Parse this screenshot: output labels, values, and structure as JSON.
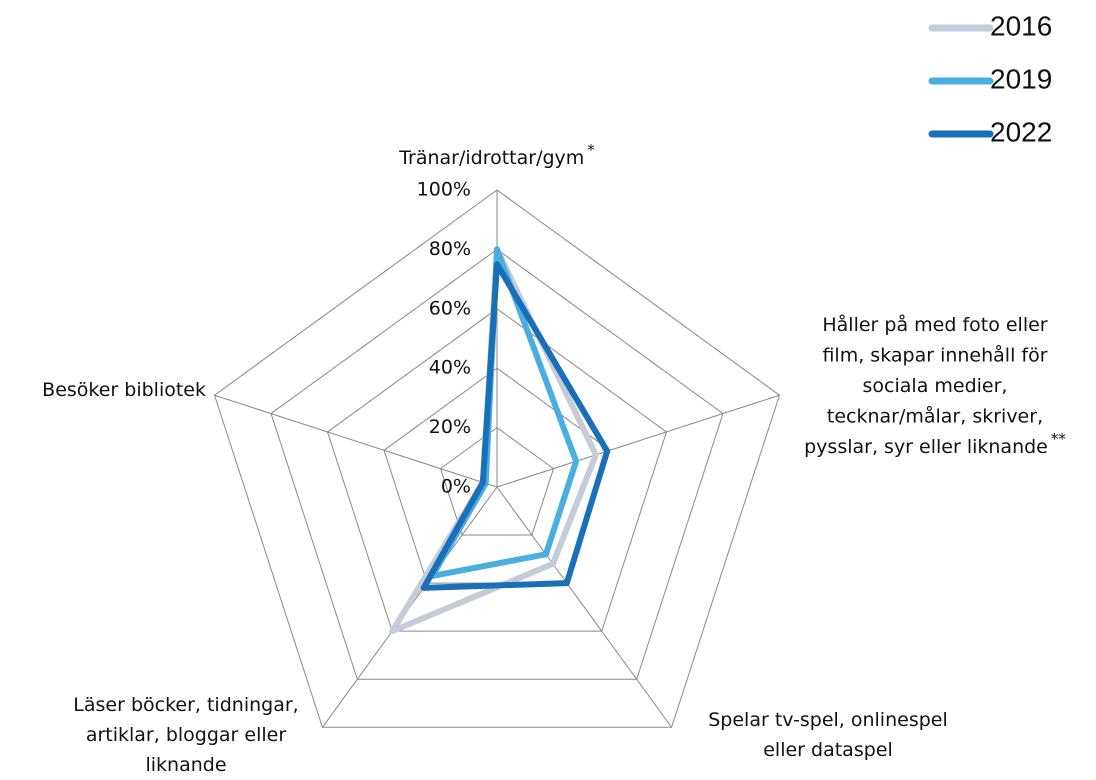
{
  "chart_data": {
    "type": "radar",
    "categories": [
      [
        "Tränar/idrottar/gym"
      ],
      [
        "Håller på med foto eller",
        "film, skapar innehåll för",
        "sociala medier,",
        "tecknar/målar, skriver,",
        "pysslar, syr eller liknande"
      ],
      [
        "Spelar tv-spel, onlinespel",
        "eller dataspel"
      ],
      [
        "Läser böcker, tidningar,",
        "artiklar, bloggar eller",
        "liknande"
      ],
      [
        "Besöker bibliotek"
      ]
    ],
    "annotations": [
      "*",
      "**"
    ],
    "series": [
      {
        "name": "2016",
        "color": "#c5ccd9",
        "values": [
          80,
          35,
          32,
          60,
          5
        ]
      },
      {
        "name": "2019",
        "color": "#4aaee0",
        "values": [
          80,
          28,
          28,
          37,
          4
        ]
      },
      {
        "name": "2022",
        "color": "#1a6fb8",
        "values": [
          75,
          39,
          40,
          42,
          5
        ]
      }
    ],
    "rlim": [
      0,
      100
    ],
    "rticks": [
      {
        "value": 0,
        "label": "0%"
      },
      {
        "value": 20,
        "label": "20%"
      },
      {
        "value": 40,
        "label": "40%"
      },
      {
        "value": 60,
        "label": "60%"
      },
      {
        "value": 80,
        "label": "80%"
      },
      {
        "value": 100,
        "label": "100%"
      }
    ],
    "grid": true,
    "legend": "top-right"
  }
}
